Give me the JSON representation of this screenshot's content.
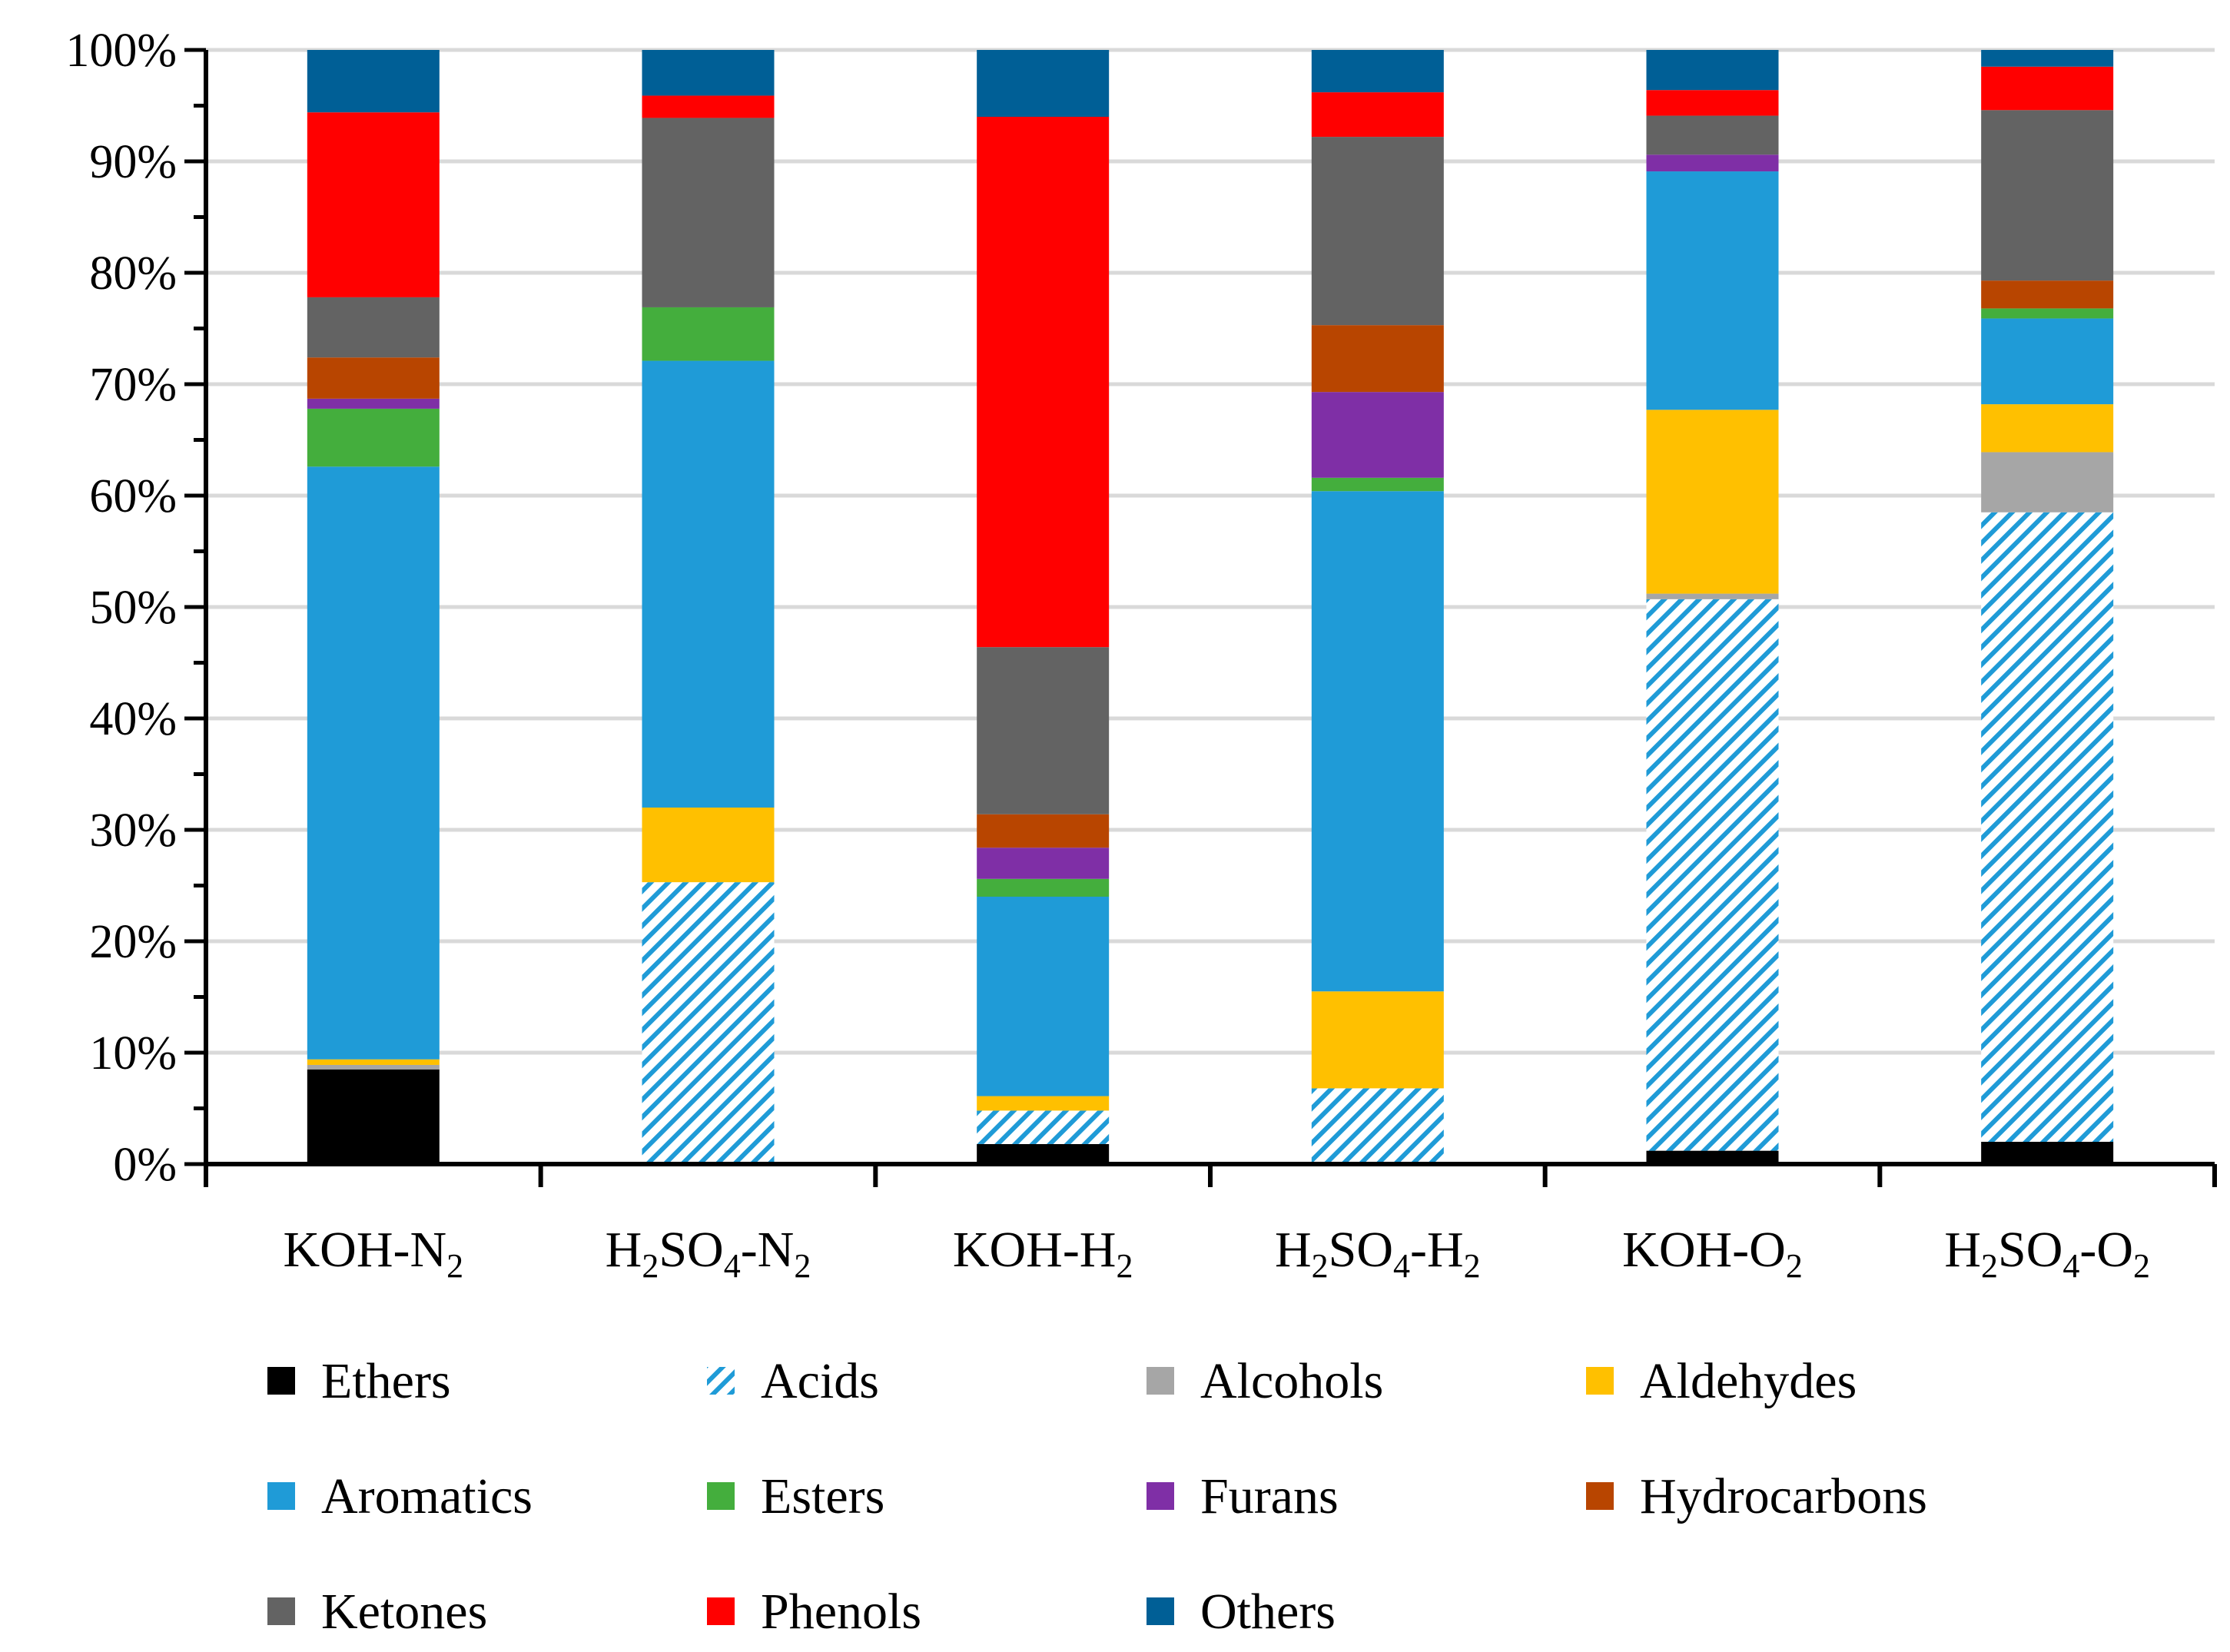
{
  "chart_data": {
    "type": "bar",
    "stacked": true,
    "percent": true,
    "title": "",
    "xlabel": "",
    "ylabel": "",
    "ylim": [
      0,
      100
    ],
    "y_ticks": [
      "0%",
      "10%",
      "20%",
      "30%",
      "40%",
      "50%",
      "60%",
      "70%",
      "80%",
      "90%",
      "100%"
    ],
    "grid": true,
    "legend_position": "bottom",
    "categories": [
      {
        "main": "KOH-N",
        "sub": "2",
        "tail": ""
      },
      {
        "main": "H",
        "sub": "2",
        "mid": "SO",
        "sub2": "4",
        "mid2": "-N",
        "sub3": "2"
      },
      {
        "main": "KOH-H",
        "sub": "2",
        "tail": ""
      },
      {
        "main": "H",
        "sub": "2",
        "mid": "SO",
        "sub2": "4",
        "mid2": "-H",
        "sub3": "2"
      },
      {
        "main": "KOH-O",
        "sub": "2",
        "tail": ""
      },
      {
        "main": "H",
        "sub": "2",
        "mid": "SO",
        "sub2": "4",
        "mid2": "-O",
        "sub3": "2"
      }
    ],
    "series": [
      {
        "name": "Ethers",
        "color": "#000000",
        "pattern": false,
        "values": [
          8.5,
          0,
          1.8,
          0,
          1.2,
          2.0
        ]
      },
      {
        "name": "Acids",
        "color": "#1f9bd7",
        "pattern": true,
        "values": [
          0,
          25.3,
          3.0,
          6.8,
          49.5,
          56.5
        ]
      },
      {
        "name": "Alcohols",
        "color": "#a6a6a6",
        "pattern": false,
        "values": [
          0.4,
          0,
          0,
          0,
          0.5,
          5.4
        ]
      },
      {
        "name": "Aldehydes",
        "color": "#ffc000",
        "pattern": false,
        "values": [
          0.5,
          6.7,
          1.3,
          8.7,
          16.5,
          4.3
        ]
      },
      {
        "name": "Aromatics",
        "color": "#1f9bd7",
        "pattern": false,
        "values": [
          53.2,
          40.1,
          17.9,
          44.9,
          21.4,
          7.7
        ]
      },
      {
        "name": "Esters",
        "color": "#44ae3d",
        "pattern": false,
        "values": [
          5.2,
          4.8,
          1.6,
          1.2,
          0,
          0.9
        ]
      },
      {
        "name": "Furans",
        "color": "#7f2fa6",
        "pattern": false,
        "values": [
          0.9,
          0,
          2.8,
          7.7,
          1.5,
          0
        ]
      },
      {
        "name": "Hydrocarbons",
        "color": "#b84500",
        "pattern": false,
        "values": [
          3.7,
          0,
          3.0,
          6.0,
          0,
          2.5
        ]
      },
      {
        "name": "Ketones",
        "color": "#636363",
        "pattern": false,
        "values": [
          5.4,
          17.0,
          15.0,
          16.9,
          3.5,
          15.3
        ]
      },
      {
        "name": "Phenols",
        "color": "#ff0000",
        "pattern": false,
        "values": [
          16.6,
          2.0,
          47.6,
          4.0,
          2.3,
          3.9
        ]
      },
      {
        "name": "Others",
        "color": "#005f96",
        "pattern": false,
        "values": [
          5.6,
          4.1,
          6.0,
          3.8,
          3.6,
          1.5
        ]
      }
    ]
  }
}
